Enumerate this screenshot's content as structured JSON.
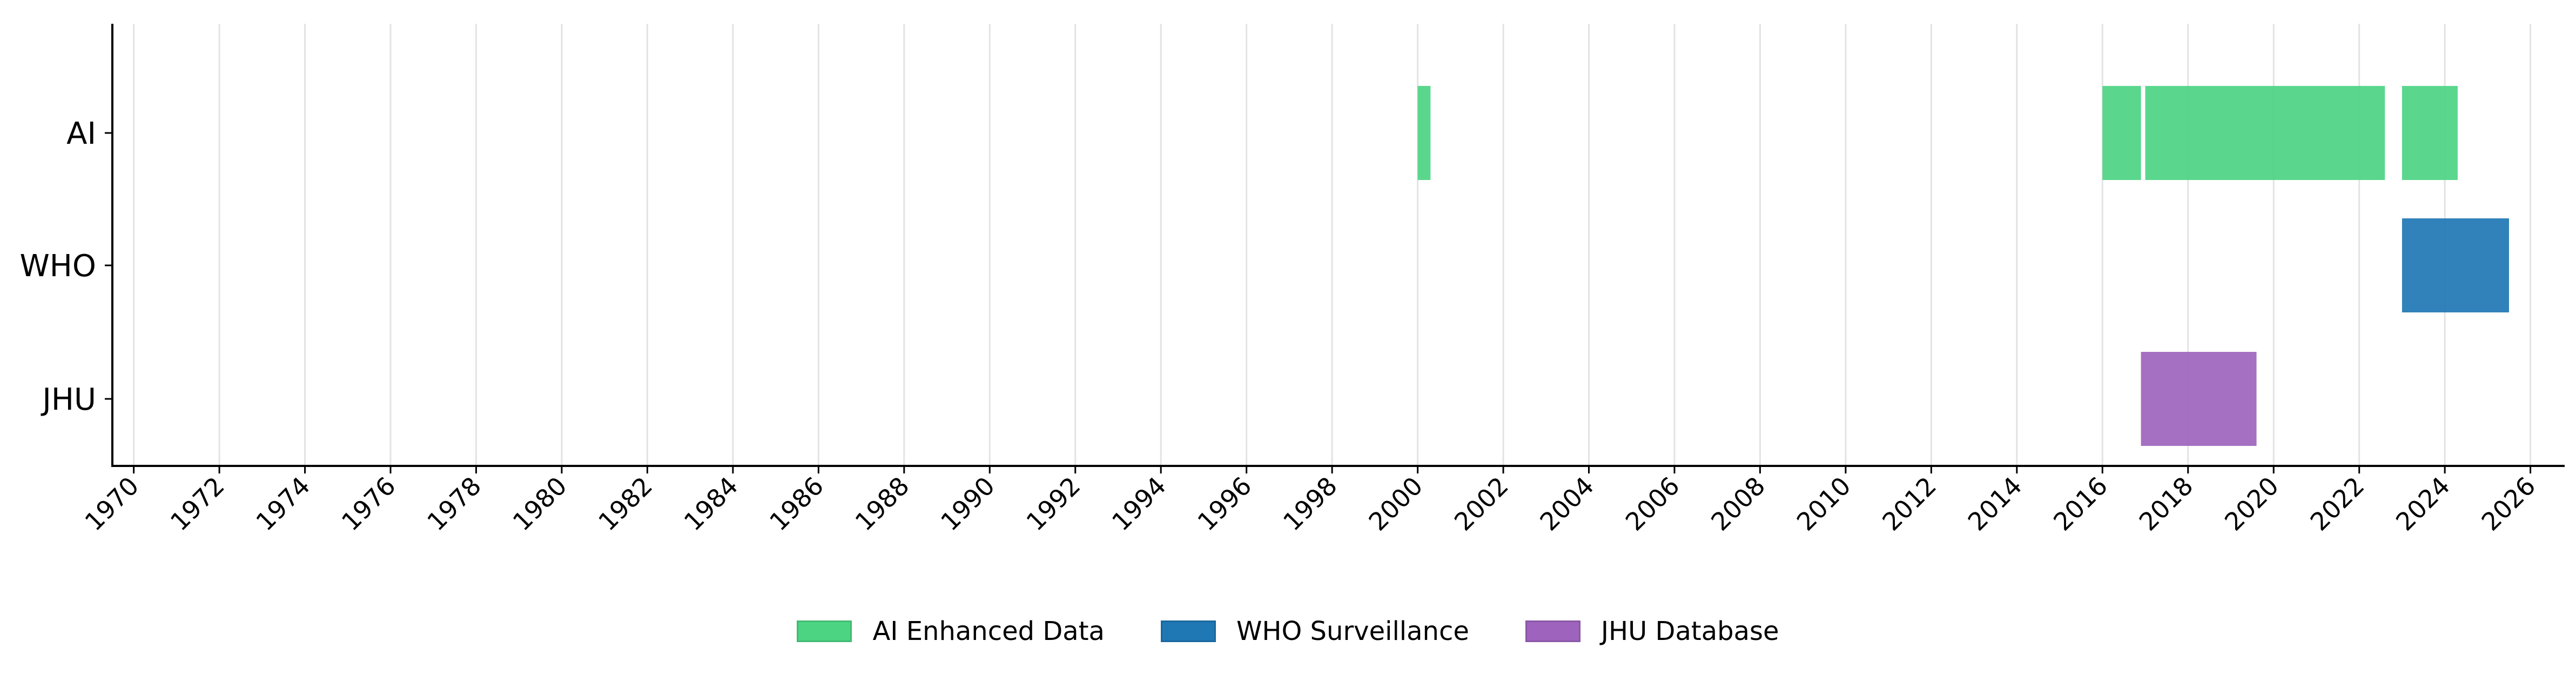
{
  "chart_data": {
    "type": "timeline",
    "title": "",
    "xlabel": "",
    "ylabel": "",
    "xlim": [
      1969.5,
      2026.8
    ],
    "grid": "vertical",
    "legend_position": "bottom-center",
    "x_ticks": [
      "1970",
      "1972",
      "1974",
      "1976",
      "1978",
      "1980",
      "1982",
      "1984",
      "1986",
      "1988",
      "1990",
      "1992",
      "1994",
      "1996",
      "1998",
      "2000",
      "2002",
      "2004",
      "2006",
      "2008",
      "2010",
      "2012",
      "2014",
      "2016",
      "2018",
      "2020",
      "2022",
      "2024",
      "2026"
    ],
    "categories": [
      "AI",
      "WHO",
      "JHU"
    ],
    "series": [
      {
        "name": "AI Enhanced Data",
        "category": "AI",
        "color": "#4cd483",
        "intervals": [
          [
            2000.0,
            2000.3
          ],
          [
            2016.0,
            2016.9
          ],
          [
            2017.0,
            2022.6
          ],
          [
            2023.0,
            2024.3
          ]
        ]
      },
      {
        "name": "WHO Surveillance",
        "category": "WHO",
        "color": "#1f77b4",
        "intervals": [
          [
            2023.0,
            2025.5
          ]
        ]
      },
      {
        "name": "JHU Database",
        "category": "JHU",
        "color": "#9e64bd",
        "intervals": [
          [
            2016.9,
            2019.6
          ]
        ]
      }
    ]
  }
}
